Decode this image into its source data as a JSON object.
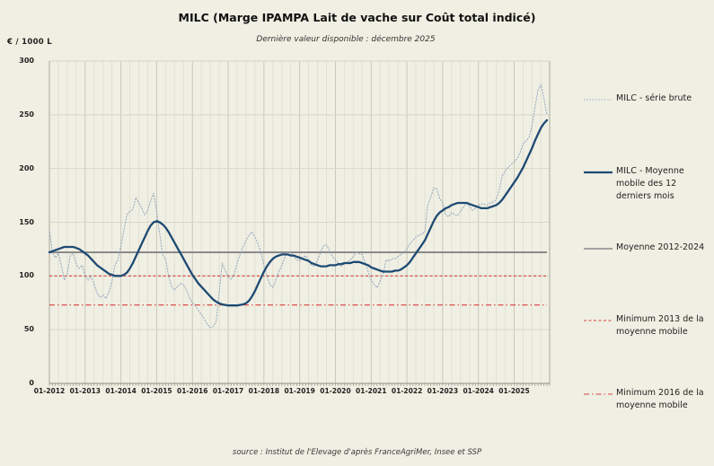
{
  "chart_data": {
    "type": "line",
    "title": "MILC (Marge IPAMPA Lait de vache sur Coût total indicé)",
    "subtitle": "Dernière valeur disponible : décembre 2025",
    "y_axis_title": "€ / 1000 L",
    "source": "source : Institut de l'Elevage d'après FranceAgriMer, Insee et SSP",
    "ylim": [
      0,
      300
    ],
    "y_ticks": [
      0,
      50,
      100,
      150,
      200,
      250,
      300
    ],
    "x_tick_labels": [
      "01-2012",
      "01-2013",
      "01-2014",
      "01-2015",
      "01-2016",
      "01-2017",
      "01-2018",
      "01-2019",
      "01-2020",
      "01-2021",
      "01-2022",
      "01-2023",
      "01-2024",
      "01-2025"
    ],
    "x_tick_month_index": [
      0,
      12,
      24,
      36,
      48,
      60,
      72,
      84,
      96,
      108,
      120,
      132,
      144,
      156
    ],
    "months_span": 168,
    "x_start": "01-2012",
    "x_end": "12-2025",
    "grid": "on",
    "background_color": "#f0efe3",
    "series": [
      {
        "name": "MILC - série brute",
        "color": "#92a7bd",
        "style": "dotted",
        "values": [
          143,
          122,
          117,
          121,
          110,
          96,
          102,
          119,
          121,
          111,
          107,
          110,
          100,
          96,
          100,
          92,
          84,
          80,
          82,
          79,
          85,
          95,
          110,
          115,
          128,
          142,
          157,
          160,
          162,
          173,
          168,
          163,
          157,
          161,
          170,
          177,
          160,
          140,
          120,
          115,
          100,
          90,
          87,
          90,
          93,
          92,
          87,
          80,
          75,
          72,
          68,
          64,
          60,
          55,
          52,
          53,
          58,
          85,
          112,
          105,
          99,
          97,
          102,
          112,
          120,
          127,
          133,
          138,
          141,
          136,
          130,
          122,
          110,
          100,
          92,
          89,
          96,
          104,
          110,
          117,
          123,
          122,
          118,
          115,
          114,
          117,
          119,
          114,
          110,
          109,
          115,
          122,
          128,
          129,
          124,
          118,
          115,
          112,
          109,
          111,
          113,
          115,
          118,
          122,
          121,
          120,
          112,
          104,
          96,
          92,
          89,
          95,
          101,
          115,
          114,
          116,
          116,
          118,
          120,
          122,
          125,
          130,
          133,
          136,
          138,
          139,
          141,
          166,
          173,
          182,
          181,
          172,
          168,
          157,
          155,
          159,
          157,
          156,
          160,
          164,
          168,
          165,
          161,
          163,
          166,
          167,
          167,
          166,
          168,
          169,
          171,
          180,
          193,
          198,
          201,
          204,
          206,
          209,
          215,
          223,
          226,
          229,
          240,
          257,
          273,
          278,
          265,
          250
        ]
      },
      {
        "name": "MILC - Moyenne mobile des 12 derniers mois",
        "color": "#1d4a73",
        "style": "solid",
        "values": [
          122,
          123,
          124,
          125,
          126,
          127,
          127,
          127,
          127,
          126,
          125,
          123,
          121,
          119,
          116,
          113,
          110,
          108,
          106,
          104,
          102,
          101,
          100,
          100,
          100,
          101,
          103,
          107,
          112,
          118,
          124,
          130,
          136,
          142,
          147,
          150,
          151,
          150,
          148,
          145,
          141,
          136,
          131,
          126,
          121,
          116,
          111,
          106,
          101,
          97,
          93,
          90,
          87,
          84,
          81,
          78,
          76,
          74.5,
          73.5,
          73,
          72.5,
          72.5,
          72.5,
          72.5,
          73,
          73.5,
          74.5,
          77,
          81,
          86,
          92,
          98,
          104,
          109,
          113,
          116,
          118,
          119,
          120,
          120,
          120,
          119,
          119,
          118,
          117,
          116,
          115,
          114,
          112,
          111,
          110,
          109,
          109,
          109,
          110,
          110,
          110,
          111,
          111,
          112,
          112,
          112,
          113,
          113,
          113,
          112,
          111,
          110,
          108,
          107,
          106,
          105,
          104,
          104,
          104,
          104,
          105,
          105,
          106,
          108,
          110,
          113,
          117,
          121,
          125,
          129,
          133,
          139,
          145,
          151,
          156,
          159,
          161,
          163,
          164,
          166,
          167,
          168,
          168,
          168,
          168,
          167,
          166,
          165,
          164,
          163,
          163,
          163,
          164,
          165,
          166,
          168,
          171,
          175,
          179,
          183,
          187,
          191,
          196,
          201,
          207,
          213,
          219,
          226,
          232,
          238,
          242,
          245
        ]
      }
    ],
    "reference_lines": [
      {
        "name": "Moyenne 2012-2024",
        "value": 122,
        "color": "#8a8a8a",
        "style": "solid"
      },
      {
        "name": "Minimum 2013 de la moyenne mobile",
        "value": 100,
        "color": "#d84040",
        "style": "dashed"
      },
      {
        "name": "Minimum 2016 de la moyenne mobile",
        "value": 73,
        "color": "#d84040",
        "style": "dashdot"
      }
    ],
    "legend": {
      "position": "right",
      "items": [
        {
          "label": "MILC - série brute",
          "color": "#92a7bd",
          "style": "dotted"
        },
        {
          "label": "MILC - Moyenne mobile des 12 derniers mois",
          "color": "#1d4a73",
          "style": "solid"
        },
        {
          "label": "Moyenne 2012-2024",
          "color": "#8a8a8a",
          "style": "solid"
        },
        {
          "label": "Minimum 2013  de la moyenne mobile",
          "color": "#d84040",
          "style": "dashed"
        },
        {
          "label": "Minimum 2016 de la moyenne mobile",
          "color": "#d84040",
          "style": "dashdot"
        }
      ]
    }
  }
}
